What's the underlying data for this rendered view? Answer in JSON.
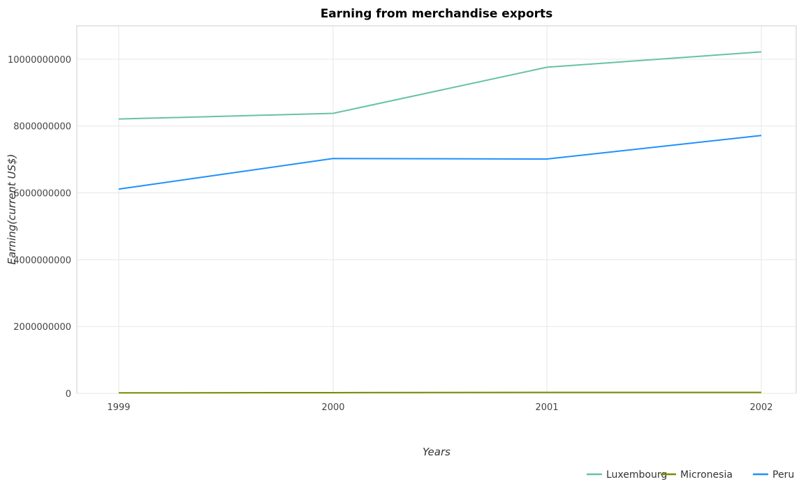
{
  "chart_data": {
    "type": "line",
    "title": "Earning from merchandise exports",
    "xlabel": "Years",
    "ylabel": "Earning(current US$)",
    "categories": [
      "1999",
      "2000",
      "2001",
      "2002"
    ],
    "yticks": [
      0,
      2000000000,
      4000000000,
      6000000000,
      8000000000,
      10000000000
    ],
    "ytick_labels": [
      "0",
      "2000000000",
      "4000000000",
      "6000000000",
      "8000000000",
      "10000000000"
    ],
    "ylim": [
      0,
      11000000000
    ],
    "grid": true,
    "legend_position": "bottom-right",
    "series": [
      {
        "name": "Luxembourg",
        "color": "#66c2a5",
        "values": [
          8210000000,
          8380000000,
          9760000000,
          10220000000
        ]
      },
      {
        "name": "Micronesia",
        "color": "#7a8c00",
        "values": [
          15000000,
          22000000,
          28000000,
          30000000
        ]
      },
      {
        "name": "Peru",
        "color": "#1e90ff",
        "values": [
          6113000000,
          7028000000,
          7013000000,
          7717000000
        ]
      }
    ]
  }
}
